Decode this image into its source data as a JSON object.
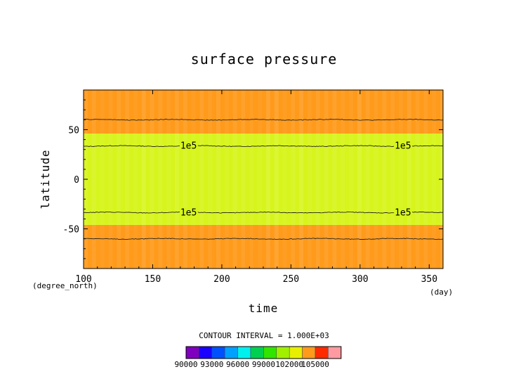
{
  "chart_data": {
    "type": "heatmap",
    "title": "surface pressure",
    "xlabel": "time",
    "ylabel": "latitude",
    "x_unit": "(day)",
    "y_unit": "(degree_north)",
    "xlim": [
      100,
      360
    ],
    "ylim": [
      -90,
      90
    ],
    "x_ticks": [
      "100",
      "150",
      "200",
      "250",
      "300",
      "350"
    ],
    "y_ticks": [
      "50",
      "0",
      "-50"
    ],
    "contour_interval_text": "CONTOUR INTERVAL = 1.000E+03",
    "contour_label": "1e5",
    "bands": [
      {
        "lat_from": -90,
        "lat_to": -46,
        "range": [
          102000,
          103000
        ],
        "color": "#ff9a1a"
      },
      {
        "lat_from": -46,
        "lat_to": 46,
        "range": [
          101000,
          102000
        ],
        "color": "#d7f51c"
      },
      {
        "lat_from": 46,
        "lat_to": 90,
        "range": [
          102000,
          103000
        ],
        "color": "#ff9a1a"
      }
    ],
    "contours": [
      {
        "level": "1e5",
        "lat": 33.5
      },
      {
        "level": "1e5",
        "lat": -33.5
      },
      {
        "level": "",
        "lat": 60
      },
      {
        "level": "",
        "lat": -60
      }
    ],
    "colorbar": {
      "labels": [
        "90000",
        "93000",
        "96000",
        "99000",
        "102000",
        "105000"
      ],
      "colors": [
        "#7f00bf",
        "#1a00ff",
        "#0050ff",
        "#00a0ff",
        "#00f0f0",
        "#00d050",
        "#30e600",
        "#a0f000",
        "#e8f000",
        "#ff9a1a",
        "#ff2a00",
        "#ff9aa0"
      ]
    }
  }
}
